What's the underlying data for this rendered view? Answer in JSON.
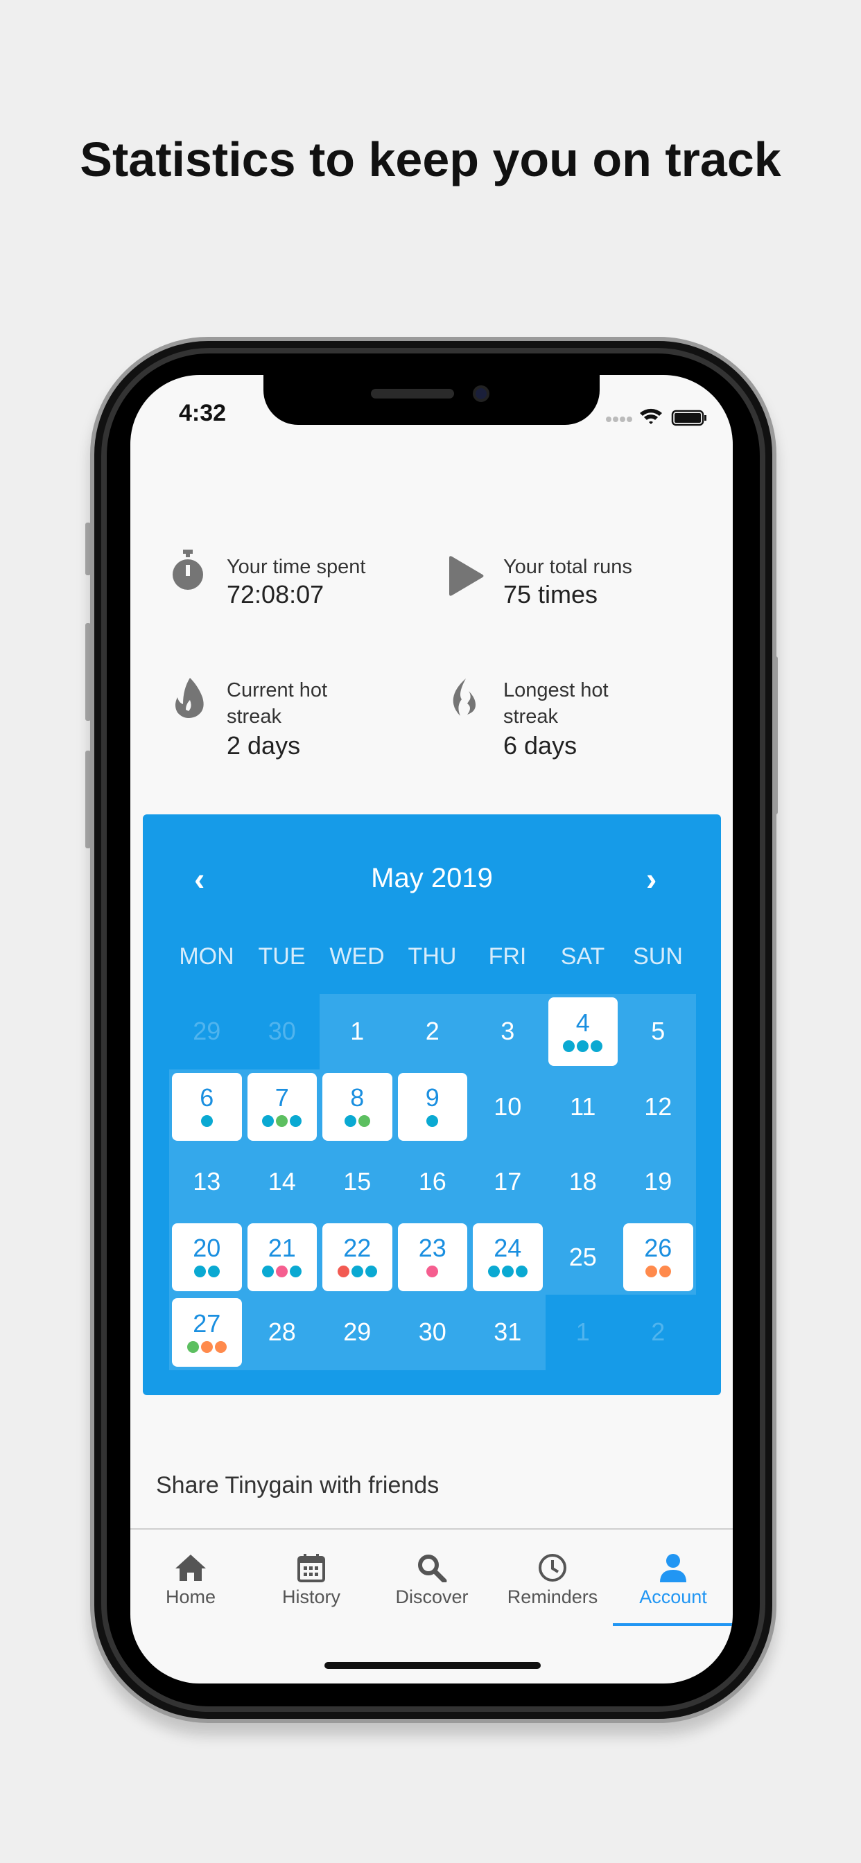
{
  "headline": "Statistics to keep you on track",
  "status_bar": {
    "time": "4:32"
  },
  "stats": [
    {
      "icon": "stopwatch-icon",
      "label": "Your time spent",
      "value": "72:08:07"
    },
    {
      "icon": "play-icon",
      "label": "Your total runs",
      "value": "75 times"
    },
    {
      "icon": "flame-icon",
      "label": "Current hot streak",
      "value": "2 days"
    },
    {
      "icon": "fire-outline-icon",
      "label": "Longest hot streak",
      "value": "6 days"
    }
  ],
  "calendar": {
    "month_label": "May 2019",
    "prev_icon": "chevron-left-icon",
    "next_icon": "chevron-right-icon",
    "weekdays": [
      "MON",
      "TUE",
      "WED",
      "THU",
      "FRI",
      "SAT",
      "SUN"
    ],
    "colors": {
      "background": "#169be8",
      "teal": "#0aa9d2",
      "green": "#5cbf60",
      "pink": "#f55e8f",
      "red": "#f25a52",
      "orange": "#ff8a4c"
    },
    "cells": [
      {
        "day": "29",
        "other": true
      },
      {
        "day": "30",
        "other": true
      },
      {
        "day": "1"
      },
      {
        "day": "2"
      },
      {
        "day": "3"
      },
      {
        "day": "4",
        "dots": [
          "teal",
          "teal",
          "teal"
        ]
      },
      {
        "day": "5"
      },
      {
        "day": "6",
        "dots": [
          "teal"
        ]
      },
      {
        "day": "7",
        "dots": [
          "teal",
          "green",
          "teal"
        ]
      },
      {
        "day": "8",
        "dots": [
          "teal",
          "green"
        ]
      },
      {
        "day": "9",
        "dots": [
          "teal"
        ]
      },
      {
        "day": "10"
      },
      {
        "day": "11"
      },
      {
        "day": "12"
      },
      {
        "day": "13"
      },
      {
        "day": "14"
      },
      {
        "day": "15"
      },
      {
        "day": "16"
      },
      {
        "day": "17"
      },
      {
        "day": "18"
      },
      {
        "day": "19"
      },
      {
        "day": "20",
        "dots": [
          "teal",
          "teal"
        ]
      },
      {
        "day": "21",
        "dots": [
          "teal",
          "pink",
          "teal"
        ]
      },
      {
        "day": "22",
        "dots": [
          "red",
          "teal",
          "teal"
        ]
      },
      {
        "day": "23",
        "dots": [
          "pink"
        ]
      },
      {
        "day": "24",
        "dots": [
          "teal",
          "teal",
          "teal"
        ]
      },
      {
        "day": "25"
      },
      {
        "day": "26",
        "dots": [
          "orange",
          "orange"
        ]
      },
      {
        "day": "27",
        "dots": [
          "green",
          "orange",
          "orange"
        ]
      },
      {
        "day": "28"
      },
      {
        "day": "29"
      },
      {
        "day": "30"
      },
      {
        "day": "31"
      },
      {
        "day": "1",
        "other": true
      },
      {
        "day": "2",
        "other": true
      }
    ]
  },
  "share_label": "Share Tinygain with friends",
  "tabs": [
    {
      "label": "Home",
      "icon": "home-icon"
    },
    {
      "label": "History",
      "icon": "calendar-icon"
    },
    {
      "label": "Discover",
      "icon": "search-icon"
    },
    {
      "label": "Reminders",
      "icon": "clock-icon"
    },
    {
      "label": "Account",
      "icon": "person-icon",
      "active": true
    }
  ],
  "accent_color": "#2196f3"
}
